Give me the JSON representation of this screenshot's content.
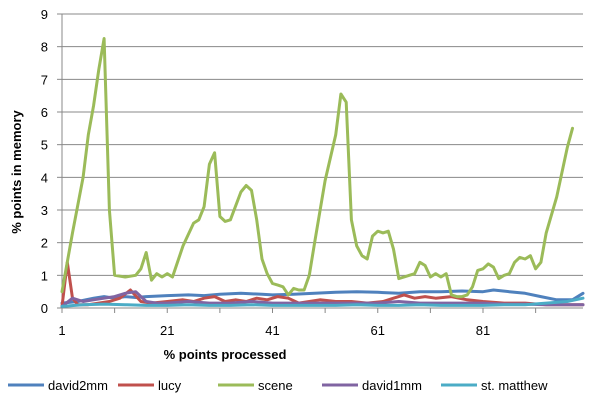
{
  "chart_data": {
    "type": "line",
    "xlabel": "% points processed",
    "ylabel": "% points in memory",
    "ylim": [
      0,
      9
    ],
    "yticks": [
      0,
      1,
      2,
      3,
      4,
      5,
      6,
      7,
      8,
      9
    ],
    "xlim": [
      1,
      100
    ],
    "xticks": [
      1,
      21,
      41,
      61,
      81
    ],
    "grid": "horizontal",
    "legend_position": "bottom",
    "series": [
      {
        "name": "david2mm",
        "color": "#4F81BD",
        "points": [
          [
            1,
            0.15
          ],
          [
            4,
            0.2
          ],
          [
            7,
            0.3
          ],
          [
            9,
            0.35
          ],
          [
            11,
            0.3
          ],
          [
            13,
            0.35
          ],
          [
            15,
            0.32
          ],
          [
            17,
            0.35
          ],
          [
            21,
            0.38
          ],
          [
            25,
            0.4
          ],
          [
            28,
            0.38
          ],
          [
            31,
            0.42
          ],
          [
            35,
            0.45
          ],
          [
            39,
            0.42
          ],
          [
            41,
            0.4
          ],
          [
            45,
            0.42
          ],
          [
            49,
            0.45
          ],
          [
            53,
            0.48
          ],
          [
            57,
            0.5
          ],
          [
            61,
            0.48
          ],
          [
            65,
            0.45
          ],
          [
            69,
            0.5
          ],
          [
            73,
            0.5
          ],
          [
            77,
            0.52
          ],
          [
            81,
            0.5
          ],
          [
            83,
            0.55
          ],
          [
            86,
            0.5
          ],
          [
            89,
            0.45
          ],
          [
            92,
            0.35
          ],
          [
            95,
            0.25
          ],
          [
            98,
            0.25
          ],
          [
            100,
            0.45
          ]
        ]
      },
      {
        "name": "lucy",
        "color": "#C0504D",
        "points": [
          [
            1,
            0.05
          ],
          [
            2,
            1.4
          ],
          [
            3,
            0.3
          ],
          [
            4,
            0.1
          ],
          [
            6,
            0.1
          ],
          [
            8,
            0.15
          ],
          [
            10,
            0.2
          ],
          [
            12,
            0.3
          ],
          [
            14,
            0.55
          ],
          [
            16,
            0.2
          ],
          [
            18,
            0.15
          ],
          [
            21,
            0.2
          ],
          [
            24,
            0.25
          ],
          [
            26,
            0.2
          ],
          [
            28,
            0.3
          ],
          [
            30,
            0.35
          ],
          [
            32,
            0.2
          ],
          [
            34,
            0.25
          ],
          [
            36,
            0.2
          ],
          [
            38,
            0.3
          ],
          [
            40,
            0.25
          ],
          [
            42,
            0.35
          ],
          [
            44,
            0.3
          ],
          [
            46,
            0.15
          ],
          [
            48,
            0.2
          ],
          [
            50,
            0.25
          ],
          [
            53,
            0.2
          ],
          [
            56,
            0.2
          ],
          [
            59,
            0.15
          ],
          [
            62,
            0.2
          ],
          [
            64,
            0.3
          ],
          [
            66,
            0.4
          ],
          [
            68,
            0.3
          ],
          [
            70,
            0.35
          ],
          [
            72,
            0.3
          ],
          [
            75,
            0.35
          ],
          [
            78,
            0.25
          ],
          [
            81,
            0.2
          ],
          [
            85,
            0.15
          ],
          [
            89,
            0.15
          ],
          [
            93,
            0.1
          ],
          [
            97,
            0.1
          ],
          [
            100,
            0.1
          ]
        ]
      },
      {
        "name": "scene",
        "color": "#9BBB59",
        "points": [
          [
            1,
            0.5
          ],
          [
            3,
            2.3
          ],
          [
            5,
            4
          ],
          [
            6,
            5.3
          ],
          [
            7,
            6.2
          ],
          [
            8,
            7.3
          ],
          [
            9,
            8.25
          ],
          [
            10,
            3
          ],
          [
            11,
            1
          ],
          [
            13,
            0.95
          ],
          [
            15,
            1
          ],
          [
            16,
            1.2
          ],
          [
            17,
            1.7
          ],
          [
            18,
            0.85
          ],
          [
            19,
            1.05
          ],
          [
            20,
            0.95
          ],
          [
            21,
            1.05
          ],
          [
            22,
            0.95
          ],
          [
            24,
            1.9
          ],
          [
            26,
            2.6
          ],
          [
            27,
            2.7
          ],
          [
            28,
            3.1
          ],
          [
            29,
            4.4
          ],
          [
            30,
            4.75
          ],
          [
            31,
            2.8
          ],
          [
            32,
            2.65
          ],
          [
            33,
            2.7
          ],
          [
            35,
            3.55
          ],
          [
            36,
            3.75
          ],
          [
            37,
            3.6
          ],
          [
            38,
            2.7
          ],
          [
            39,
            1.5
          ],
          [
            40,
            1.05
          ],
          [
            41,
            0.75
          ],
          [
            42,
            0.7
          ],
          [
            43,
            0.65
          ],
          [
            44,
            0.4
          ],
          [
            45,
            0.6
          ],
          [
            46,
            0.55
          ],
          [
            47,
            0.55
          ],
          [
            48,
            1
          ],
          [
            49,
            2
          ],
          [
            51,
            3.9
          ],
          [
            53,
            5.3
          ],
          [
            54,
            6.55
          ],
          [
            55,
            6.3
          ],
          [
            56,
            2.7
          ],
          [
            57,
            1.9
          ],
          [
            58,
            1.6
          ],
          [
            59,
            1.5
          ],
          [
            60,
            2.2
          ],
          [
            61,
            2.35
          ],
          [
            62,
            2.3
          ],
          [
            63,
            2.35
          ],
          [
            64,
            1.8
          ],
          [
            65,
            0.9
          ],
          [
            66,
            0.95
          ],
          [
            67,
            1
          ],
          [
            68,
            1.05
          ],
          [
            69,
            1.4
          ],
          [
            70,
            1.3
          ],
          [
            71,
            0.95
          ],
          [
            72,
            1.05
          ],
          [
            73,
            0.95
          ],
          [
            74,
            1.05
          ],
          [
            75,
            0.4
          ],
          [
            76,
            0.35
          ],
          [
            77,
            0.35
          ],
          [
            78,
            0.4
          ],
          [
            79,
            0.65
          ],
          [
            80,
            1.15
          ],
          [
            81,
            1.2
          ],
          [
            82,
            1.35
          ],
          [
            83,
            1.25
          ],
          [
            84,
            0.9
          ],
          [
            85,
            1
          ],
          [
            86,
            1.05
          ],
          [
            87,
            1.4
          ],
          [
            88,
            1.55
          ],
          [
            89,
            1.5
          ],
          [
            90,
            1.6
          ],
          [
            91,
            1.2
          ],
          [
            92,
            1.4
          ],
          [
            93,
            2.3
          ],
          [
            95,
            3.4
          ],
          [
            97,
            4.9
          ],
          [
            98,
            5.5
          ]
        ]
      },
      {
        "name": "david1mm",
        "color": "#8064A2",
        "points": [
          [
            1,
            0.05
          ],
          [
            3,
            0.3
          ],
          [
            5,
            0.2
          ],
          [
            7,
            0.25
          ],
          [
            9,
            0.3
          ],
          [
            11,
            0.35
          ],
          [
            13,
            0.45
          ],
          [
            15,
            0.5
          ],
          [
            17,
            0.2
          ],
          [
            19,
            0.15
          ],
          [
            21,
            0.15
          ],
          [
            25,
            0.2
          ],
          [
            29,
            0.15
          ],
          [
            33,
            0.15
          ],
          [
            37,
            0.2
          ],
          [
            41,
            0.15
          ],
          [
            45,
            0.15
          ],
          [
            49,
            0.15
          ],
          [
            53,
            0.15
          ],
          [
            57,
            0.15
          ],
          [
            61,
            0.15
          ],
          [
            65,
            0.2
          ],
          [
            69,
            0.15
          ],
          [
            73,
            0.15
          ],
          [
            77,
            0.15
          ],
          [
            81,
            0.15
          ],
          [
            85,
            0.12
          ],
          [
            89,
            0.12
          ],
          [
            93,
            0.1
          ],
          [
            97,
            0.1
          ],
          [
            100,
            0.1
          ]
        ]
      },
      {
        "name": "st. matthew",
        "color": "#4BACC6",
        "points": [
          [
            1,
            0.05
          ],
          [
            5,
            0.1
          ],
          [
            9,
            0.12
          ],
          [
            13,
            0.1
          ],
          [
            17,
            0.08
          ],
          [
            21,
            0.08
          ],
          [
            25,
            0.1
          ],
          [
            29,
            0.08
          ],
          [
            33,
            0.08
          ],
          [
            37,
            0.1
          ],
          [
            41,
            0.08
          ],
          [
            45,
            0.08
          ],
          [
            49,
            0.08
          ],
          [
            53,
            0.08
          ],
          [
            57,
            0.1
          ],
          [
            61,
            0.08
          ],
          [
            65,
            0.08
          ],
          [
            69,
            0.1
          ],
          [
            73,
            0.08
          ],
          [
            77,
            0.08
          ],
          [
            81,
            0.08
          ],
          [
            85,
            0.1
          ],
          [
            89,
            0.1
          ],
          [
            93,
            0.15
          ],
          [
            97,
            0.2
          ],
          [
            100,
            0.3
          ]
        ]
      }
    ]
  }
}
